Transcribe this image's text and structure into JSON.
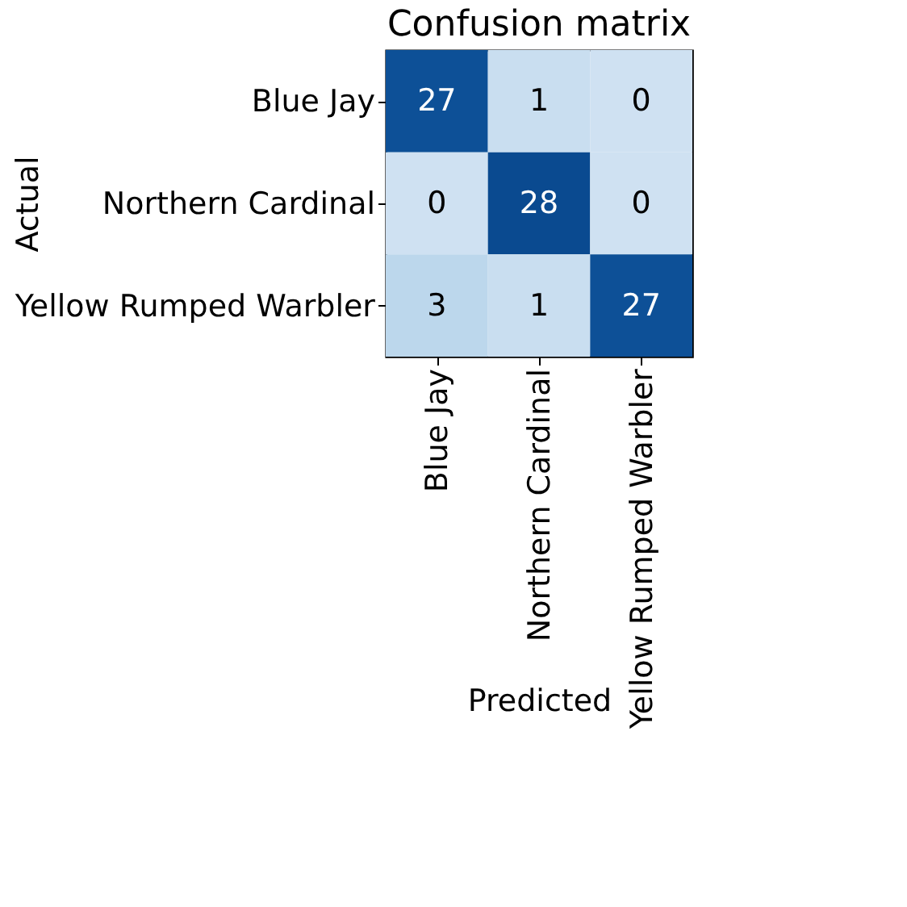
{
  "chart_data": {
    "type": "heatmap",
    "title": "Confusion matrix",
    "xlabel": "Predicted",
    "ylabel": "Actual",
    "categories": [
      "Blue Jay",
      "Northern Cardinal",
      "Yellow Rumped Warbler"
    ],
    "y_categories": [
      "Blue Jay",
      "Northern Cardinal",
      "Yellow Rumped Warbler"
    ],
    "cells": [
      [
        27,
        1,
        0
      ],
      [
        0,
        28,
        0
      ],
      [
        3,
        1,
        27
      ]
    ],
    "data_labels": true,
    "grid": false
  }
}
